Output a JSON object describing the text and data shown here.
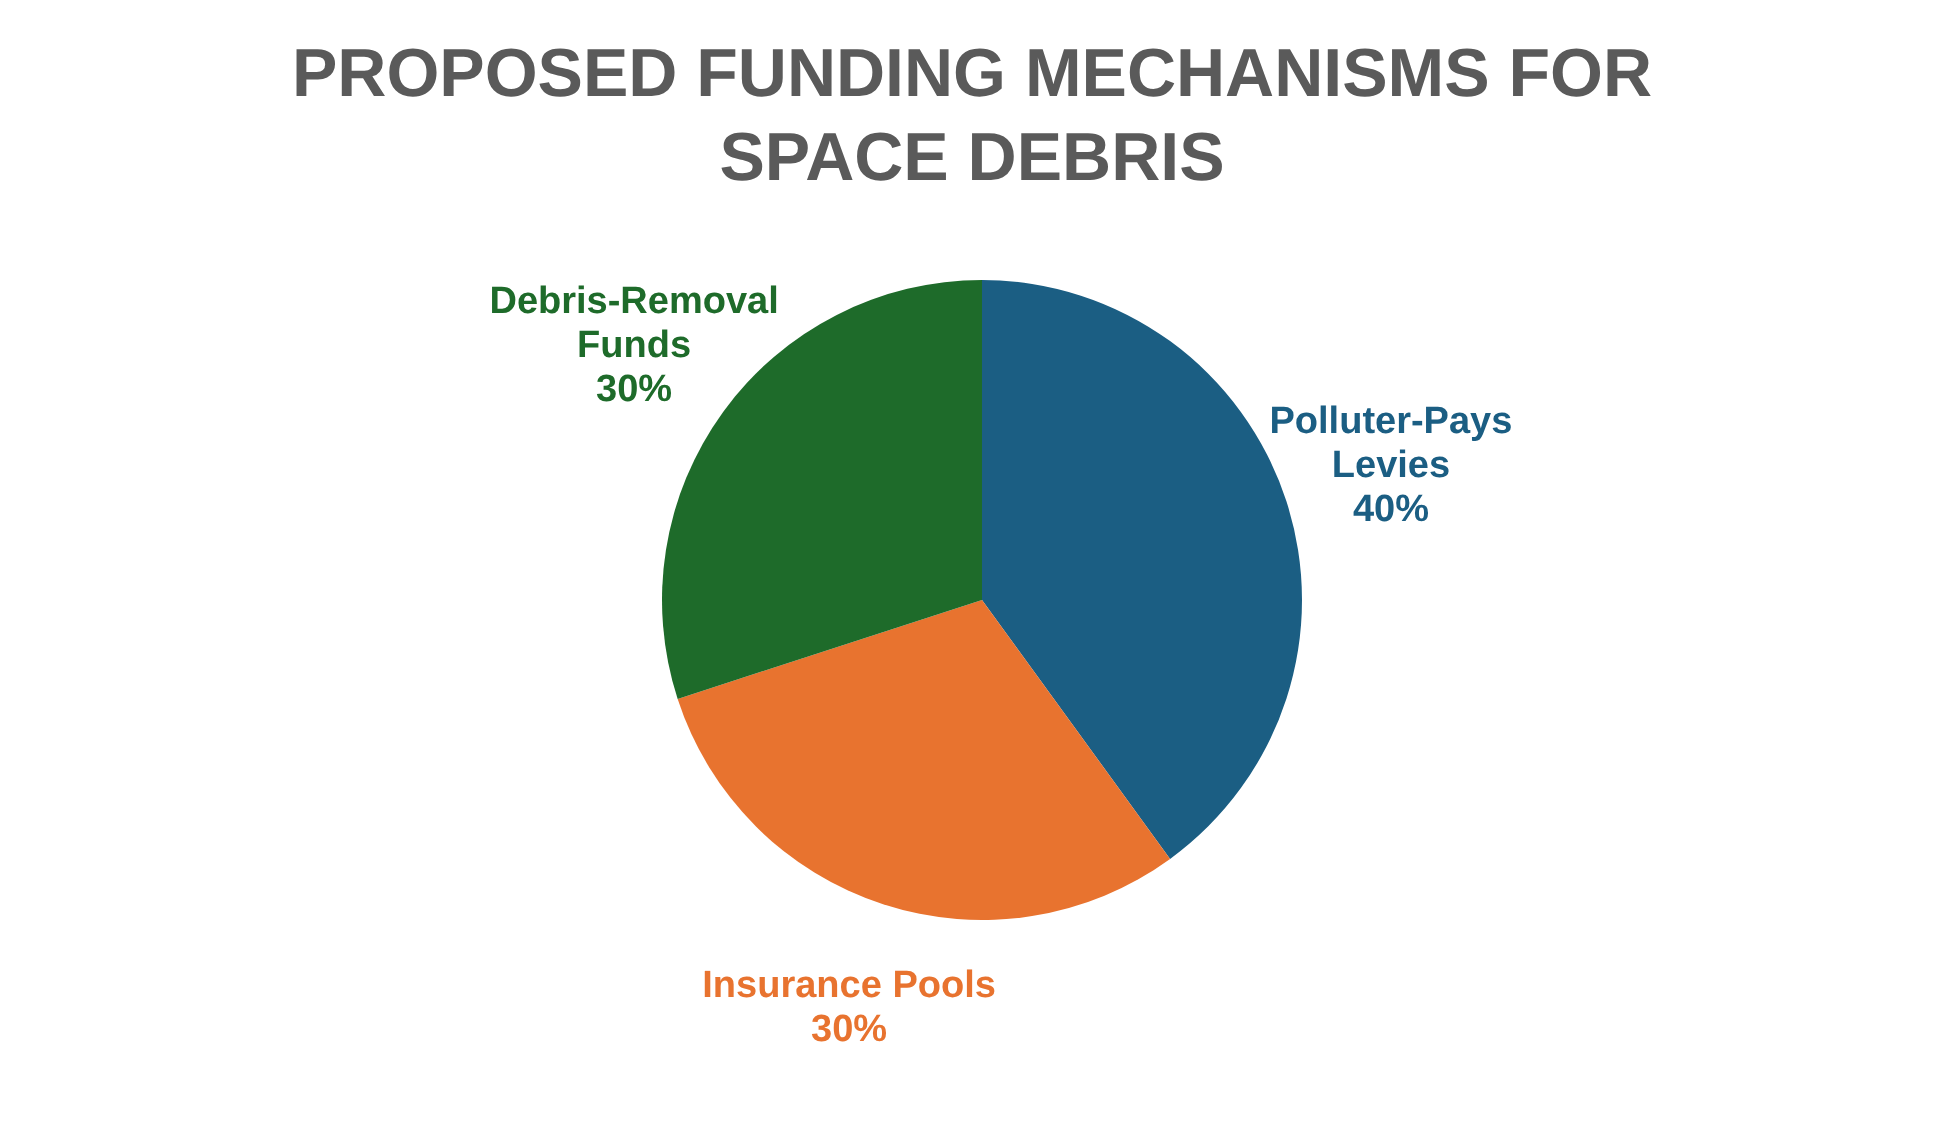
{
  "chart_data": {
    "type": "pie",
    "title": "PROPOSED FUNDING MECHANISMS FOR SPACE DEBRIS",
    "categories": [
      "Polluter-Pays Levies",
      "Insurance Pools",
      "Debris-Removal Funds"
    ],
    "values": [
      40,
      30,
      30
    ],
    "value_labels": [
      "40%",
      "30%",
      "30%"
    ],
    "colors": [
      "#1b5e83",
      "#e8732f",
      "#1e6b2a"
    ],
    "legend": false
  }
}
